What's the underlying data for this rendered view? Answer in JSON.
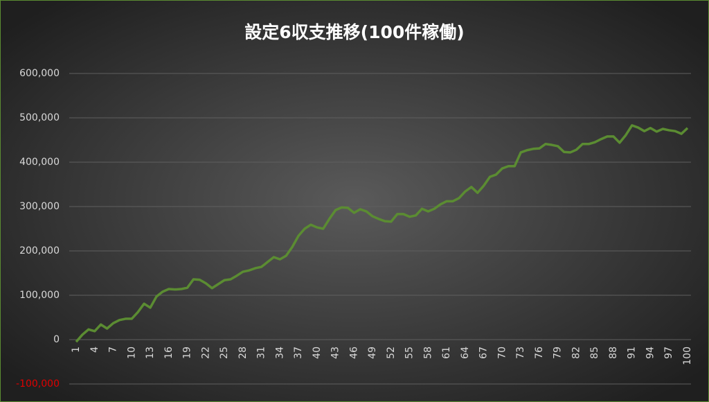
{
  "chart_data": {
    "type": "line",
    "title": "設定6収支推移(100件稼働)",
    "categories": [
      "1",
      null,
      null,
      "4",
      null,
      null,
      "7",
      null,
      null,
      "10",
      null,
      null,
      "13",
      null,
      null,
      "16",
      null,
      null,
      "19",
      null,
      null,
      "22",
      null,
      null,
      "25",
      null,
      null,
      "28",
      null,
      null,
      "31",
      null,
      null,
      "34",
      null,
      null,
      "37",
      null,
      null,
      "40",
      null,
      null,
      "43",
      null,
      null,
      "46",
      null,
      null,
      "49",
      null,
      null,
      "52",
      null,
      null,
      "55",
      null,
      null,
      "58",
      null,
      null,
      "61",
      null,
      null,
      "64",
      null,
      null,
      "67",
      null,
      null,
      "70",
      null,
      null,
      "73",
      null,
      null,
      "76",
      null,
      null,
      "79",
      null,
      null,
      "82",
      null,
      null,
      "85",
      null,
      null,
      "88",
      null,
      null,
      "91",
      null,
      null,
      "94",
      null,
      null,
      "97",
      null,
      null,
      "100"
    ],
    "series": [
      {
        "color": "#5b8c32",
        "values": [
          -5000,
          11000,
          23000,
          19000,
          34000,
          25000,
          37000,
          44000,
          47000,
          47000,
          62000,
          81000,
          72000,
          97000,
          108000,
          114000,
          113000,
          114000,
          117000,
          136000,
          135000,
          127000,
          116000,
          125000,
          134000,
          136000,
          144000,
          153000,
          156000,
          161000,
          164000,
          175000,
          186000,
          181000,
          189000,
          209000,
          234000,
          250000,
          259000,
          253000,
          250000,
          272000,
          292000,
          298000,
          297000,
          286000,
          294000,
          289000,
          278000,
          272000,
          267000,
          266000,
          283000,
          283000,
          277000,
          280000,
          295000,
          289000,
          295000,
          305000,
          312000,
          312000,
          319000,
          334000,
          344000,
          331000,
          347000,
          367000,
          372000,
          386000,
          391000,
          391000,
          422000,
          427000,
          430000,
          431000,
          441000,
          439000,
          436000,
          423000,
          422000,
          428000,
          441000,
          441000,
          445000,
          452000,
          458000,
          458000,
          444000,
          461000,
          483000,
          478000,
          470000,
          477000,
          469000,
          475000,
          472000,
          470000,
          464000,
          477000
        ]
      }
    ],
    "ylim": [
      -100000,
      600000
    ],
    "yticks": [
      {
        "value": -100000,
        "label": "-100,000"
      },
      0,
      {
        "value": 100000,
        "label": "100,000"
      },
      {
        "value": 200000,
        "label": "200,000"
      },
      {
        "value": 300000,
        "label": "300,000"
      },
      {
        "value": 400000,
        "label": "400,000"
      },
      {
        "value": 500000,
        "label": "500,000"
      },
      {
        "value": 600000,
        "label": "600,000"
      }
    ],
    "grid": true,
    "negative_tick_color": "#e00000"
  }
}
